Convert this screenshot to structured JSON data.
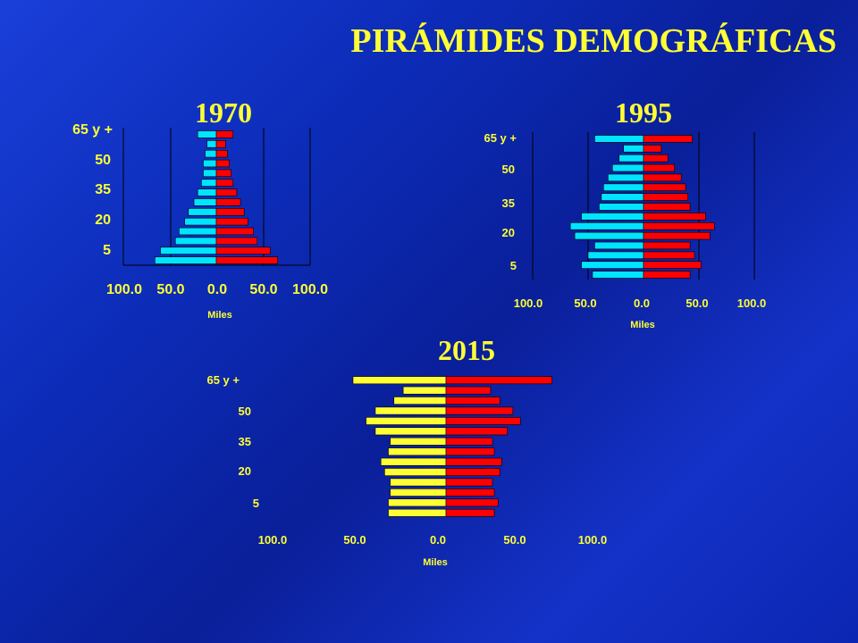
{
  "title": "PIRÁMIDES DEMOGRÁFICAS",
  "colors": {
    "male_1970": "#00e5ff",
    "male_1995": "#00e5ff",
    "male_2015": "#ffff33",
    "female": "#ff0000",
    "text": "#ffff33",
    "axis": "#000000"
  },
  "chart_data": [
    {
      "type": "bar",
      "title": "1970",
      "orientation": "population-pyramid",
      "xlabel": "Miles",
      "age_labels": [
        "65 y +",
        "50",
        "35",
        "20",
        "5"
      ],
      "x_ticks": [
        "100.0",
        "50.0",
        "0.0",
        "50.0",
        "100.0"
      ],
      "xlim": [
        -100,
        100
      ],
      "series": [
        {
          "side": "left",
          "values": [
            20,
            10,
            12,
            14,
            14,
            16,
            20,
            24,
            30,
            34,
            40,
            44,
            60,
            66
          ]
        },
        {
          "side": "right",
          "values": [
            18,
            10,
            12,
            14,
            16,
            18,
            22,
            26,
            30,
            34,
            40,
            44,
            58,
            66
          ]
        }
      ]
    },
    {
      "type": "bar",
      "title": "1995",
      "orientation": "population-pyramid",
      "xlabel": "Miles",
      "age_labels": [
        "65 y +",
        "50",
        "35",
        "20",
        "5"
      ],
      "x_ticks": [
        "100.0",
        "50.0",
        "0.0",
        "50.0",
        "100.0"
      ],
      "xlim": [
        -100,
        100
      ],
      "series": [
        {
          "side": "left",
          "values": [
            44,
            18,
            22,
            28,
            32,
            36,
            38,
            40,
            56,
            66,
            62,
            44,
            50,
            56,
            46
          ]
        },
        {
          "side": "right",
          "values": [
            44,
            16,
            22,
            28,
            34,
            38,
            40,
            42,
            56,
            64,
            60,
            42,
            46,
            52,
            42
          ]
        }
      ]
    },
    {
      "type": "bar",
      "title": "2015",
      "orientation": "population-pyramid",
      "xlabel": "Miles",
      "age_labels": [
        "65 y +",
        "50",
        "35",
        "20",
        "5"
      ],
      "x_ticks": [
        "100.0",
        "50.0",
        "0.0",
        "50.0",
        "100.0"
      ],
      "xlim": [
        -100,
        100
      ],
      "series": [
        {
          "side": "left",
          "values": [
            100,
            46,
            56,
            76,
            86,
            76,
            60,
            62,
            70,
            66,
            60,
            60,
            62,
            62
          ]
        },
        {
          "side": "right",
          "values": [
            114,
            48,
            58,
            72,
            80,
            66,
            50,
            52,
            60,
            58,
            50,
            52,
            56,
            52
          ]
        }
      ]
    }
  ]
}
